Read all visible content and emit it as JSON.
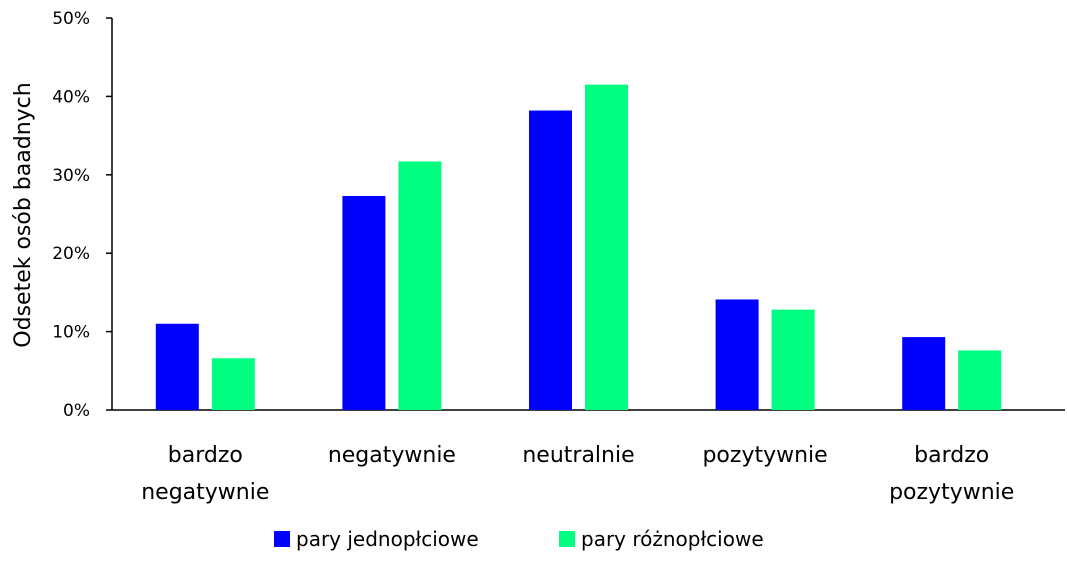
{
  "chart_data": {
    "type": "bar",
    "categories": [
      [
        "bardzo",
        "negatywnie"
      ],
      [
        "negatywnie"
      ],
      [
        "neutralnie"
      ],
      [
        "pozytywnie"
      ],
      [
        "bardzo",
        "pozytywnie"
      ]
    ],
    "series": [
      {
        "name": "pary jednopłciowe",
        "color": "#0000ff",
        "values": [
          11.0,
          27.3,
          38.2,
          14.1,
          9.3
        ]
      },
      {
        "name": "pary różnopłciowe",
        "color": "#00ff80",
        "values": [
          6.6,
          31.7,
          41.5,
          12.8,
          7.6
        ]
      }
    ],
    "ylabel": "Odsetek osób baadnych",
    "ylim": [
      0,
      50
    ],
    "yticks": [
      0,
      10,
      20,
      30,
      40,
      50
    ],
    "ytick_format": "percent",
    "grid": false,
    "legend_position": "bottom"
  }
}
